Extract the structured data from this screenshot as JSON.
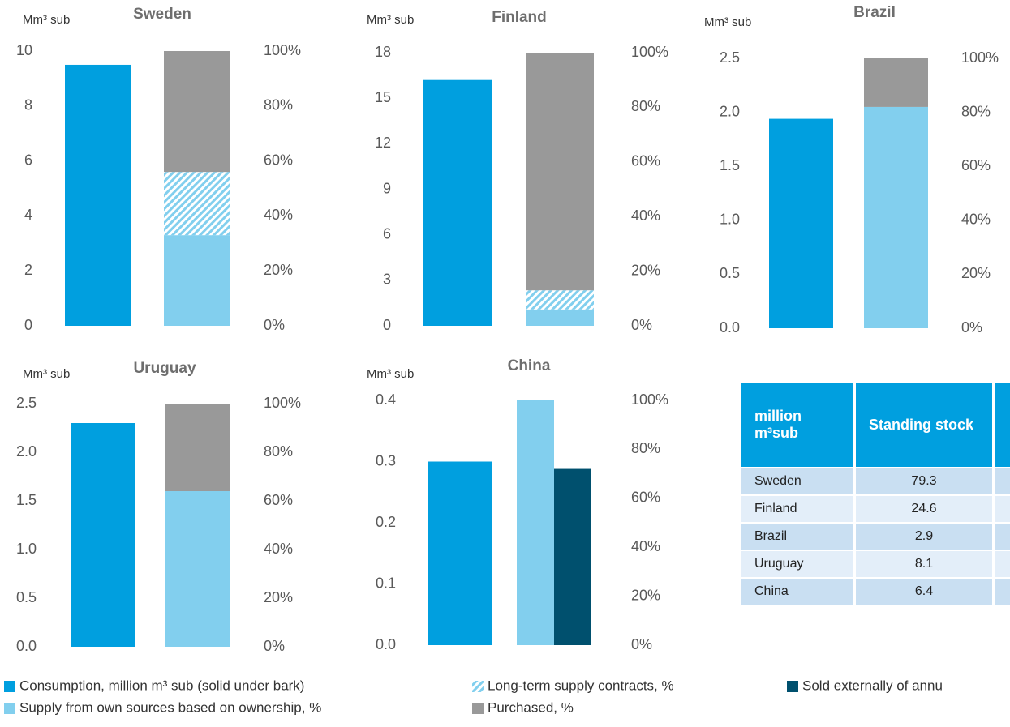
{
  "chart_data": [
    {
      "type": "bar",
      "title": "Sweden",
      "y_label": "Mm³ sub",
      "stacked": true,
      "ylim": [
        0,
        10
      ],
      "yticks": [
        0,
        2,
        4,
        6,
        8,
        10
      ],
      "y2lim": [
        0,
        100
      ],
      "y2ticks": [
        {
          "value": 0,
          "label": "0%"
        },
        {
          "value": 20,
          "label": "20%"
        },
        {
          "value": 40,
          "label": "40%"
        },
        {
          "value": 60,
          "label": "60%"
        },
        {
          "value": 80,
          "label": "80%"
        },
        {
          "value": 100,
          "label": "100%"
        }
      ],
      "series": [
        {
          "name": "Consumption, million m³ sub (solid under bark)",
          "color": "#009fdf",
          "values": [
            9.5
          ]
        },
        {
          "name": "Supply from own sources based on ownership, %",
          "color": "#82cfee",
          "values": [
            33
          ],
          "axis": "y2"
        },
        {
          "name": "Long-term supply contracts, %",
          "color": "#82cfee",
          "pattern": "hatch",
          "values": [
            23
          ],
          "axis": "y2"
        },
        {
          "name": "Purchased, %",
          "color": "#999999",
          "values": [
            44
          ],
          "axis": "y2"
        }
      ]
    },
    {
      "type": "bar",
      "title": "Finland",
      "y_label": "Mm³ sub",
      "stacked": true,
      "ylim": [
        0,
        18
      ],
      "yticks": [
        0,
        3,
        6,
        9,
        12,
        15,
        18
      ],
      "y2lim": [
        0,
        100
      ],
      "y2ticks": [
        {
          "value": 0,
          "label": "0%"
        },
        {
          "value": 20,
          "label": "20%"
        },
        {
          "value": 40,
          "label": "40%"
        },
        {
          "value": 60,
          "label": "60%"
        },
        {
          "value": 80,
          "label": "80%"
        },
        {
          "value": 100,
          "label": "100%"
        }
      ],
      "series": [
        {
          "name": "Consumption, million m³ sub (solid under bark)",
          "color": "#009fdf",
          "values": [
            16.2
          ]
        },
        {
          "name": "Supply from own sources based on ownership, %",
          "color": "#82cfee",
          "values": [
            6
          ],
          "axis": "y2"
        },
        {
          "name": "Long-term supply contracts, %",
          "color": "#82cfee",
          "pattern": "hatch",
          "values": [
            7
          ],
          "axis": "y2"
        },
        {
          "name": "Purchased, %",
          "color": "#999999",
          "values": [
            87
          ],
          "axis": "y2"
        }
      ]
    },
    {
      "type": "bar",
      "title": "Brazil",
      "y_label": "Mm³ sub",
      "stacked": true,
      "ylim": [
        0,
        2.5
      ],
      "yticks": [
        {
          "value": 0,
          "label": "0.0"
        },
        0.5,
        {
          "value": 1,
          "label": "1.0"
        },
        1.5,
        {
          "value": 2,
          "label": "2.0"
        },
        2.5
      ],
      "y2lim": [
        0,
        100
      ],
      "y2ticks": [
        {
          "value": 0,
          "label": "0%"
        },
        {
          "value": 20,
          "label": "20%"
        },
        {
          "value": 40,
          "label": "40%"
        },
        {
          "value": 60,
          "label": "60%"
        },
        {
          "value": 80,
          "label": "80%"
        },
        {
          "value": 100,
          "label": "100%"
        }
      ],
      "series": [
        {
          "name": "Consumption, million m³ sub (solid under bark)",
          "color": "#009fdf",
          "values": [
            1.94
          ]
        },
        {
          "name": "Supply from own sources based on ownership, %",
          "color": "#82cfee",
          "values": [
            82
          ],
          "axis": "y2"
        },
        {
          "name": "Purchased, %",
          "color": "#999999",
          "values": [
            18
          ],
          "axis": "y2"
        }
      ]
    },
    {
      "type": "bar",
      "title": "Uruguay",
      "y_label": "Mm³ sub",
      "stacked": true,
      "ylim": [
        0,
        2.5
      ],
      "yticks": [
        {
          "value": 0,
          "label": "0.0"
        },
        0.5,
        {
          "value": 1,
          "label": "1.0"
        },
        1.5,
        {
          "value": 2,
          "label": "2.0"
        },
        2.5
      ],
      "y2lim": [
        0,
        100
      ],
      "y2ticks": [
        {
          "value": 0,
          "label": "0%"
        },
        {
          "value": 20,
          "label": "20%"
        },
        {
          "value": 40,
          "label": "40%"
        },
        {
          "value": 60,
          "label": "60%"
        },
        {
          "value": 80,
          "label": "80%"
        },
        {
          "value": 100,
          "label": "100%"
        }
      ],
      "series": [
        {
          "name": "Consumption, million m³ sub (solid under bark)",
          "color": "#009fdf",
          "values": [
            2.3
          ]
        },
        {
          "name": "Supply from own sources based on ownership, %",
          "color": "#82cfee",
          "values": [
            64
          ],
          "axis": "y2"
        },
        {
          "name": "Purchased, %",
          "color": "#999999",
          "values": [
            36
          ],
          "axis": "y2"
        }
      ]
    },
    {
      "type": "bar",
      "title": "China",
      "y_label": "Mm³ sub",
      "stacked": false,
      "ylim": [
        0,
        0.4
      ],
      "yticks": [
        {
          "value": 0,
          "label": "0.0"
        },
        0.1,
        0.2,
        0.3,
        0.4
      ],
      "y2lim": [
        0,
        100
      ],
      "y2ticks": [
        {
          "value": 0,
          "label": "0%"
        },
        {
          "value": 20,
          "label": "20%"
        },
        {
          "value": 40,
          "label": "40%"
        },
        {
          "value": 60,
          "label": "60%"
        },
        {
          "value": 80,
          "label": "80%"
        },
        {
          "value": 100,
          "label": "100%"
        }
      ],
      "series": [
        {
          "name": "Consumption, million m³ sub (solid under bark)",
          "color": "#009fdf",
          "values": [
            0.3
          ]
        },
        {
          "name": "Supply from own sources based on ownership, %",
          "color": "#82cfee",
          "values": [
            100
          ],
          "axis": "y2"
        },
        {
          "name": "Sold externally of annu",
          "color": "#00506e",
          "values": [
            72
          ],
          "axis": "y2"
        }
      ]
    }
  ],
  "table": {
    "header": [
      "million m³sub",
      "Standing stock"
    ],
    "rows": [
      [
        "Sweden",
        "79.3"
      ],
      [
        "Finland",
        "24.6"
      ],
      [
        "Brazil",
        "2.9"
      ],
      [
        "Uruguay",
        "8.1"
      ],
      [
        "China",
        "6.4"
      ]
    ]
  }
}
